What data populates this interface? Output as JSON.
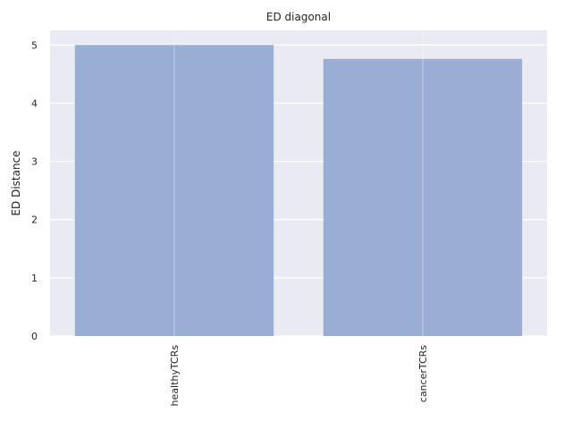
{
  "chart_data": {
    "type": "bar",
    "title": "ED diagonal",
    "xlabel": "",
    "ylabel": "ED Distance",
    "categories": [
      "healthyTCRs",
      "cancerTCRs"
    ],
    "values": [
      5.0,
      4.76
    ],
    "ylim": [
      0,
      5.25
    ],
    "yticks": [
      "0",
      "1",
      "2",
      "3",
      "4",
      "5"
    ],
    "grid": true,
    "bar_color": "#99aed3",
    "plot_background": "#eaeaf2",
    "grid_color": "#ffffff"
  }
}
